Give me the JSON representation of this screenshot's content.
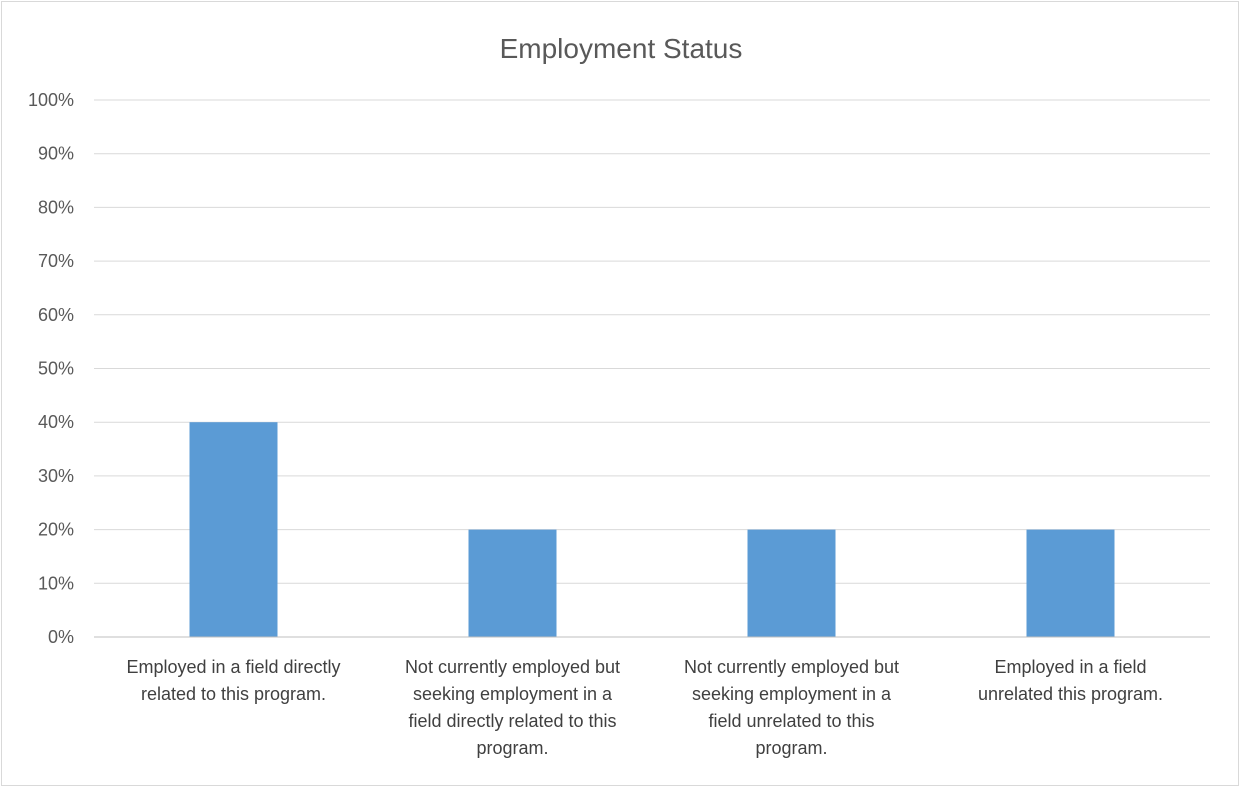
{
  "chart_data": {
    "type": "bar",
    "title": "Employment Status",
    "xlabel": "",
    "ylabel": "",
    "categories": [
      "Employed in a field directly related to this program.",
      "Not currently employed but seeking employment in a field directly related to this program.",
      "Not currently employed but seeking employment in a field unrelated to this program.",
      "Employed in a field unrelated this program."
    ],
    "category_label_lines": [
      [
        "Employed in a field directly",
        "related to this program."
      ],
      [
        "Not currently employed but",
        "seeking employment in a",
        "field directly related to this",
        "program."
      ],
      [
        "Not currently employed but",
        "seeking employment in a",
        "field unrelated to this",
        "program."
      ],
      [
        "Employed in a field",
        "unrelated this program."
      ]
    ],
    "values": [
      40,
      20,
      20,
      20
    ],
    "ylim": [
      0,
      100
    ],
    "yticks": [
      0,
      10,
      20,
      30,
      40,
      50,
      60,
      70,
      80,
      90,
      100
    ],
    "ytick_labels": [
      "0%",
      "10%",
      "20%",
      "30%",
      "40%",
      "50%",
      "60%",
      "70%",
      "80%",
      "90%",
      "100%"
    ],
    "grid": true,
    "legend": "none",
    "colors": {
      "bar": "#5b9bd5",
      "gridline": "#d9d9d9",
      "text": "#595959"
    }
  }
}
